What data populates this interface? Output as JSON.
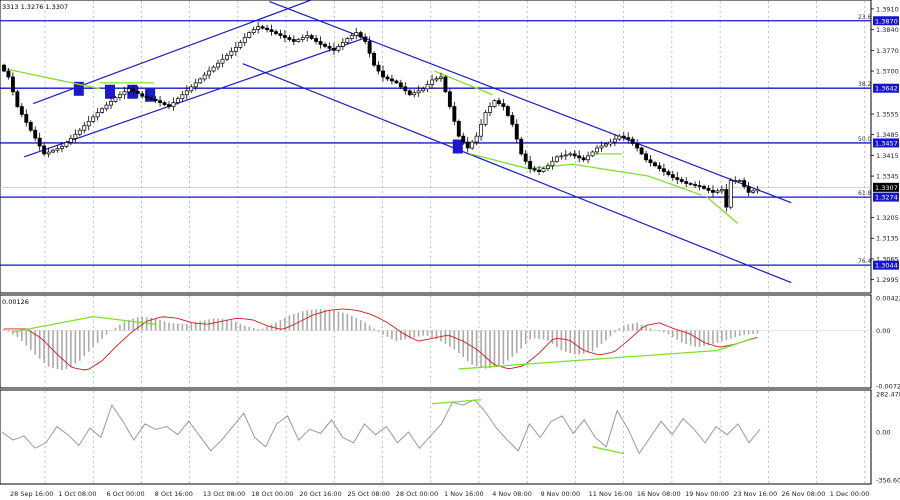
{
  "header": {
    "ohlc": "3313 1.3276 1.3307"
  },
  "chart_data": [
    {
      "type": "candlestick",
      "title": "",
      "ylim": [
        1.296,
        1.393
      ],
      "y_ticks": [
        "1.3910",
        "1.3840",
        "1.3770",
        "1.3700",
        "1.3555",
        "1.3485",
        "1.3415",
        "1.3345",
        "1.3205",
        "1.3135",
        "1.3065",
        "1.2995"
      ],
      "x_labels": [
        "28 Sep 16:00",
        "1 Oct 08:00",
        "6 Oct 00:00",
        "8 Oct 16:00",
        "13 Oct 08:00",
        "18 Oct 00:00",
        "20 Oct 16:00",
        "25 Oct 08:00",
        "28 Oct 00:00",
        "1 Nov 16:00",
        "4 Nov 08:00",
        "9 Nov 00:00",
        "11 Nov 16:00",
        "16 Nov 08:00",
        "19 Nov 00:00",
        "23 Nov 16:00",
        "26 Nov 08:00",
        "1 Dec 00:00"
      ],
      "current_price": "1.3307",
      "horizontal_levels": [
        {
          "fib": "23.6",
          "price": "1.3870"
        },
        {
          "fib": "38.2",
          "price": "1.3642"
        },
        {
          "fib": "50.0",
          "price": "1.3457"
        },
        {
          "fib": "61.8",
          "price": "1.3274"
        },
        {
          "fib": "76.4",
          "price": "1.3044"
        }
      ],
      "close_path": [
        [
          0,
          1.372
        ],
        [
          2,
          1.368
        ],
        [
          4,
          1.358
        ],
        [
          7,
          1.35
        ],
        [
          10,
          1.342
        ],
        [
          14,
          1.3445
        ],
        [
          18,
          1.35
        ],
        [
          22,
          1.356
        ],
        [
          26,
          1.361
        ],
        [
          29,
          1.364
        ],
        [
          32,
          1.3615
        ],
        [
          35,
          1.36
        ],
        [
          38,
          1.358
        ],
        [
          41,
          1.362
        ],
        [
          44,
          1.366
        ],
        [
          47,
          1.37
        ],
        [
          50,
          1.374
        ],
        [
          53,
          1.378
        ],
        [
          56,
          1.383
        ],
        [
          58,
          1.385
        ],
        [
          60,
          1.384
        ],
        [
          63,
          1.382
        ],
        [
          66,
          1.38
        ],
        [
          69,
          1.382
        ],
        [
          72,
          1.379
        ],
        [
          75,
          1.377
        ],
        [
          78,
          1.381
        ],
        [
          80,
          1.383
        ],
        [
          82,
          1.38
        ],
        [
          84,
          1.372
        ],
        [
          86,
          1.368
        ],
        [
          89,
          1.366
        ],
        [
          92,
          1.362
        ],
        [
          95,
          1.364
        ],
        [
          97,
          1.367
        ],
        [
          99,
          1.368
        ],
        [
          101,
          1.358
        ],
        [
          103,
          1.348
        ],
        [
          105,
          1.344
        ],
        [
          107,
          1.348
        ],
        [
          109,
          1.356
        ],
        [
          111,
          1.36
        ],
        [
          113,
          1.358
        ],
        [
          115,
          1.352
        ],
        [
          117,
          1.342
        ],
        [
          119,
          1.337
        ],
        [
          121,
          1.336
        ],
        [
          123,
          1.338
        ],
        [
          125,
          1.341
        ],
        [
          128,
          1.342
        ],
        [
          131,
          1.34
        ],
        [
          134,
          1.344
        ],
        [
          137,
          1.346
        ],
        [
          139,
          1.348
        ],
        [
          141,
          1.347
        ],
        [
          143,
          1.344
        ],
        [
          145,
          1.34
        ],
        [
          148,
          1.337
        ],
        [
          151,
          1.334
        ],
        [
          154,
          1.332
        ],
        [
          157,
          1.331
        ],
        [
          160,
          1.329
        ],
        [
          162,
          1.33
        ],
        [
          163,
          1.324
        ],
        [
          164,
          1.333
        ],
        [
          166,
          1.333
        ],
        [
          168,
          1.329
        ],
        [
          170,
          1.33
        ]
      ],
      "annotations": [
        "trend channel",
        "descending channel",
        "divergence lines"
      ]
    },
    {
      "type": "histogram",
      "title": "",
      "label": "0.00126",
      "y_ticks": [
        "0.00422",
        "0.00",
        "-0.00722"
      ],
      "ylim": [
        -0.00722,
        0.00422
      ],
      "values": [
        0.0002,
        -0.001,
        -0.003,
        -0.0048,
        -0.0052,
        -0.004,
        -0.002,
        -0.0002,
        0.0012,
        0.0018,
        0.0016,
        0.001,
        0.0008,
        0.0012,
        0.0016,
        0.0014,
        0.0006,
        0.0001,
        0.001,
        0.002,
        0.0026,
        0.0028,
        0.0026,
        0.002,
        0.001,
        -0.0004,
        -0.0014,
        -0.001,
        -0.0006,
        -0.0014,
        -0.0026,
        -0.0044,
        -0.005,
        -0.0046,
        -0.003,
        -0.001,
        -0.0012,
        -0.0026,
        -0.0032,
        -0.0028,
        -0.0012,
        0.0006,
        0.001,
        0.0002,
        -0.0004,
        -0.0016,
        -0.0022,
        -0.0018,
        -0.0012,
        -0.0006,
        -0.0004
      ]
    },
    {
      "type": "line",
      "title": "",
      "y_ticks": [
        "282.4782",
        "0.00",
        "-356.6026"
      ],
      "ylim": [
        -356.6026,
        282.4782
      ],
      "values": [
        0,
        -60,
        -30,
        -120,
        -80,
        40,
        -20,
        -100,
        30,
        -40,
        200,
        80,
        -60,
        60,
        20,
        40,
        -20,
        80,
        -30,
        -140,
        -60,
        40,
        140,
        -40,
        -110,
        60,
        120,
        -60,
        20,
        -10,
        90,
        -40,
        -80,
        60,
        -20,
        40,
        -80,
        0,
        -120,
        -30,
        60,
        220,
        200,
        240,
        150,
        30,
        -60,
        -140,
        60,
        -40,
        80,
        120,
        -10,
        90,
        -40,
        -110,
        160,
        20,
        -160,
        -40,
        80,
        -20,
        100,
        20,
        -80,
        40,
        -20,
        60,
        -80,
        20
      ]
    }
  ]
}
